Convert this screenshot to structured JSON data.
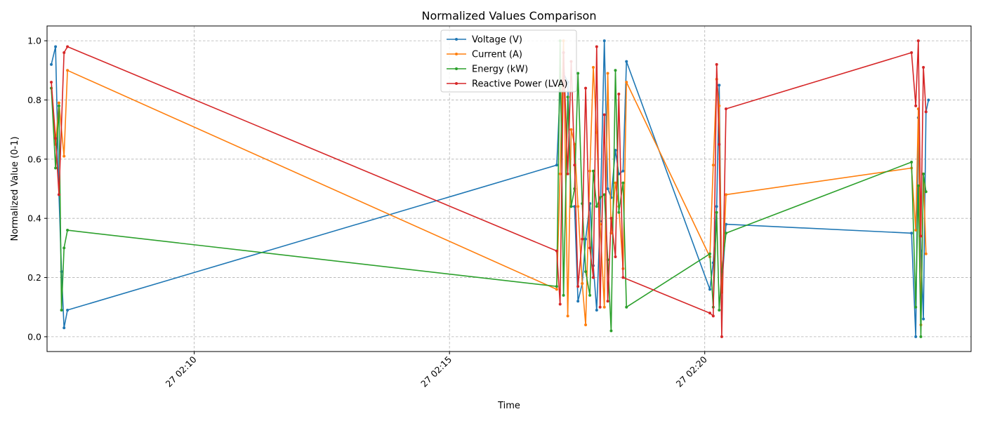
{
  "chart_data": {
    "type": "line",
    "title": "Normalized Values Comparison",
    "xlabel": "Time",
    "ylabel": "Normalized Value (0-1)",
    "x_unit": "time of day (HH:MM:SS)",
    "xlim": [
      "02:07:07",
      "02:25:13"
    ],
    "ylim": [
      -0.05,
      1.05
    ],
    "x_ticks": [
      {
        "t": "02:10:00",
        "label": "27 02:10"
      },
      {
        "t": "02:15:00",
        "label": "27 02:15"
      },
      {
        "t": "02:20:00",
        "label": "27 02:20"
      }
    ],
    "y_ticks": [
      "0.0",
      "0.2",
      "0.4",
      "0.6",
      "0.8",
      "1.0"
    ],
    "grid": true,
    "legend": "top-center",
    "series": [
      {
        "name": "Voltage (V)",
        "color": "#1f77b4",
        "points": [
          [
            "02:07:12",
            0.92
          ],
          [
            "02:07:17",
            0.98
          ],
          [
            "02:07:21",
            0.48
          ],
          [
            "02:07:24",
            0.22
          ],
          [
            "02:07:27",
            0.03
          ],
          [
            "02:07:31",
            0.09
          ],
          [
            "02:17:06",
            0.58
          ],
          [
            "02:17:10",
            0.83
          ],
          [
            "02:17:14",
            0.89
          ],
          [
            "02:17:19",
            0.86
          ],
          [
            "02:17:23",
            0.44
          ],
          [
            "02:17:27",
            0.44
          ],
          [
            "02:17:31",
            0.12
          ],
          [
            "02:17:36",
            0.18
          ],
          [
            "02:17:40",
            0.33
          ],
          [
            "02:17:45",
            0.45
          ],
          [
            "02:17:49",
            0.24
          ],
          [
            "02:17:53",
            0.09
          ],
          [
            "02:17:57",
            0.39
          ],
          [
            "02:18:02",
            1.0
          ],
          [
            "02:18:06",
            0.5
          ],
          [
            "02:18:10",
            0.47
          ],
          [
            "02:18:15",
            0.63
          ],
          [
            "02:18:19",
            0.55
          ],
          [
            "02:18:24",
            0.56
          ],
          [
            "02:18:28",
            0.93
          ],
          [
            "02:20:06",
            0.16
          ],
          [
            "02:20:10",
            0.25
          ],
          [
            "02:20:14",
            0.44
          ],
          [
            "02:20:17",
            0.85
          ],
          [
            "02:20:20",
            0.16
          ],
          [
            "02:20:25",
            0.38
          ],
          [
            "02:24:03",
            0.35
          ],
          [
            "02:24:08",
            0.0
          ],
          [
            "02:24:11",
            0.74
          ],
          [
            "02:24:14",
            0.29
          ],
          [
            "02:24:17",
            0.06
          ],
          [
            "02:24:20",
            0.76
          ],
          [
            "02:24:23",
            0.8
          ]
        ]
      },
      {
        "name": "Current (A)",
        "color": "#ff7f0e",
        "points": [
          [
            "02:07:12",
            0.84
          ],
          [
            "02:07:17",
            0.65
          ],
          [
            "02:07:21",
            0.79
          ],
          [
            "02:07:27",
            0.61
          ],
          [
            "02:07:31",
            0.9
          ],
          [
            "02:17:06",
            0.16
          ],
          [
            "02:17:10",
            0.55
          ],
          [
            "02:17:14",
            1.0
          ],
          [
            "02:17:19",
            0.07
          ],
          [
            "02:17:23",
            0.7
          ],
          [
            "02:17:27",
            0.65
          ],
          [
            "02:17:31",
            0.44
          ],
          [
            "02:17:36",
            0.18
          ],
          [
            "02:17:40",
            0.04
          ],
          [
            "02:17:45",
            0.56
          ],
          [
            "02:17:49",
            0.91
          ],
          [
            "02:17:53",
            0.69
          ],
          [
            "02:17:57",
            0.38
          ],
          [
            "02:18:02",
            0.1
          ],
          [
            "02:18:06",
            0.89
          ],
          [
            "02:18:10",
            0.35
          ],
          [
            "02:18:15",
            0.52
          ],
          [
            "02:18:19",
            0.44
          ],
          [
            "02:18:24",
            0.23
          ],
          [
            "02:18:28",
            0.86
          ],
          [
            "02:20:06",
            0.27
          ],
          [
            "02:20:10",
            0.58
          ],
          [
            "02:20:14",
            0.87
          ],
          [
            "02:20:17",
            0.78
          ],
          [
            "02:20:20",
            0.15
          ],
          [
            "02:20:25",
            0.48
          ],
          [
            "02:24:03",
            0.57
          ],
          [
            "02:24:08",
            0.36
          ],
          [
            "02:24:11",
            0.77
          ],
          [
            "02:24:14",
            0.04
          ],
          [
            "02:24:17",
            0.55
          ],
          [
            "02:24:20",
            0.28
          ]
        ]
      },
      {
        "name": "Energy (kW)",
        "color": "#2ca02c",
        "points": [
          [
            "02:07:12",
            0.84
          ],
          [
            "02:07:17",
            0.57
          ],
          [
            "02:07:21",
            0.78
          ],
          [
            "02:07:24",
            0.09
          ],
          [
            "02:07:27",
            0.3
          ],
          [
            "02:07:31",
            0.36
          ],
          [
            "02:17:06",
            0.17
          ],
          [
            "02:17:10",
            1.0
          ],
          [
            "02:17:14",
            0.14
          ],
          [
            "02:17:19",
            0.81
          ],
          [
            "02:17:23",
            0.44
          ],
          [
            "02:17:27",
            0.5
          ],
          [
            "02:17:31",
            0.89
          ],
          [
            "02:17:36",
            0.45
          ],
          [
            "02:17:40",
            0.22
          ],
          [
            "02:17:45",
            0.14
          ],
          [
            "02:17:49",
            0.56
          ],
          [
            "02:17:53",
            0.44
          ],
          [
            "02:17:57",
            0.47
          ],
          [
            "02:18:02",
            0.48
          ],
          [
            "02:18:06",
            0.26
          ],
          [
            "02:18:10",
            0.02
          ],
          [
            "02:18:15",
            0.9
          ],
          [
            "02:18:19",
            0.42
          ],
          [
            "02:18:24",
            0.52
          ],
          [
            "02:18:28",
            0.1
          ],
          [
            "02:20:06",
            0.28
          ],
          [
            "02:20:10",
            0.1
          ],
          [
            "02:20:14",
            0.42
          ],
          [
            "02:20:17",
            0.09
          ],
          [
            "02:20:20",
            0.22
          ],
          [
            "02:20:25",
            0.35
          ],
          [
            "02:24:03",
            0.59
          ],
          [
            "02:24:08",
            0.1
          ],
          [
            "02:24:11",
            0.51
          ],
          [
            "02:24:14",
            0.0
          ],
          [
            "02:24:17",
            0.55
          ],
          [
            "02:24:20",
            0.49
          ]
        ]
      },
      {
        "name": "Reactive Power (LVA)",
        "color": "#d62728",
        "points": [
          [
            "02:07:12",
            0.86
          ],
          [
            "02:07:17",
            0.67
          ],
          [
            "02:07:21",
            0.48
          ],
          [
            "02:07:27",
            0.96
          ],
          [
            "02:07:31",
            0.98
          ],
          [
            "02:17:06",
            0.29
          ],
          [
            "02:17:10",
            0.11
          ],
          [
            "02:17:14",
            0.96
          ],
          [
            "02:17:19",
            0.55
          ],
          [
            "02:17:23",
            0.93
          ],
          [
            "02:17:27",
            0.58
          ],
          [
            "02:17:31",
            0.17
          ],
          [
            "02:17:36",
            0.33
          ],
          [
            "02:17:40",
            0.84
          ],
          [
            "02:17:45",
            0.3
          ],
          [
            "02:17:49",
            0.2
          ],
          [
            "02:17:53",
            0.98
          ],
          [
            "02:17:57",
            0.1
          ],
          [
            "02:18:02",
            0.75
          ],
          [
            "02:18:06",
            0.12
          ],
          [
            "02:18:10",
            0.4
          ],
          [
            "02:18:15",
            0.27
          ],
          [
            "02:18:19",
            0.82
          ],
          [
            "02:18:24",
            0.2
          ],
          [
            "02:20:06",
            0.08
          ],
          [
            "02:20:10",
            0.07
          ],
          [
            "02:20:14",
            0.92
          ],
          [
            "02:20:17",
            0.65
          ],
          [
            "02:20:20",
            0.0
          ],
          [
            "02:20:25",
            0.77
          ],
          [
            "02:24:03",
            0.96
          ],
          [
            "02:24:08",
            0.78
          ],
          [
            "02:24:11",
            1.0
          ],
          [
            "02:24:14",
            0.34
          ],
          [
            "02:24:17",
            0.91
          ],
          [
            "02:24:20",
            0.76
          ]
        ]
      }
    ]
  }
}
